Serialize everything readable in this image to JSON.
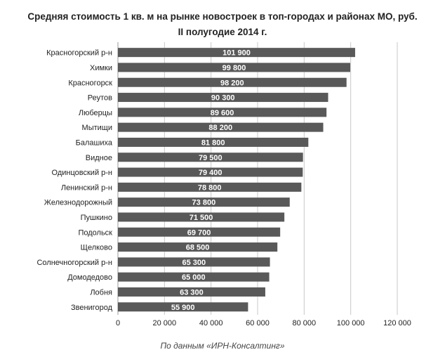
{
  "chart_data": {
    "type": "bar",
    "orientation": "horizontal",
    "title": "Средняя стоимость 1 кв. м на рынке новостроек в топ-городах и районах МО, руб.",
    "subtitle": "II полугодие 2014 г.",
    "categories": [
      "Красногорский р-н",
      "Химки",
      "Красногорск",
      "Реутов",
      "Люберцы",
      "Мытищи",
      "Балашиха",
      "Видное",
      "Одинцовский р-н",
      "Ленинский р-н",
      "Железнодорожный",
      "Пушкино",
      "Подольск",
      "Щелково",
      "Солнечногорский р-н",
      "Домодедово",
      "Лобня",
      "Звенигород"
    ],
    "values": [
      101900,
      99800,
      98200,
      90300,
      89600,
      88200,
      81800,
      79500,
      79400,
      78800,
      73800,
      71500,
      69700,
      68500,
      65300,
      65000,
      63300,
      55900
    ],
    "value_labels": [
      "101 900",
      "99 800",
      "98 200",
      "90 300",
      "89 600",
      "88 200",
      "81 800",
      "79 500",
      "79 400",
      "78 800",
      "73 800",
      "71 500",
      "69 700",
      "68 500",
      "65 300",
      "65 000",
      "63 300",
      "55 900"
    ],
    "xlim": [
      0,
      120000
    ],
    "x_ticks": [
      0,
      20000,
      40000,
      60000,
      80000,
      100000,
      120000
    ],
    "x_tick_labels": [
      "0",
      "20 000",
      "40 000",
      "60 000",
      "80 000",
      "100 000",
      "120 000"
    ],
    "grid": true,
    "bar_color": "#595959",
    "label_color": "#ffffff"
  },
  "source_note": "По данным «ИРН-Консалтинг»"
}
